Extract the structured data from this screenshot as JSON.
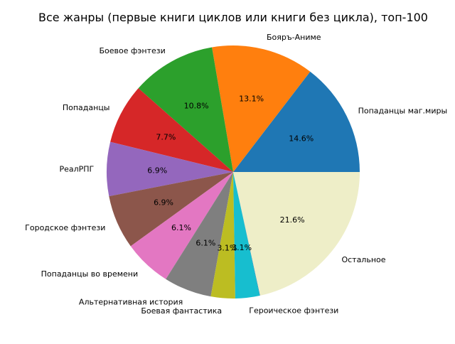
{
  "chart_data": {
    "type": "pie",
    "title": "Все жанры (первые книги циклов или книги без цикла), топ-100",
    "start_angle_deg": 0,
    "direction": "counterclockwise",
    "slices": [
      {
        "label": "Попаданцы маг.миры",
        "value": 14.6,
        "pct_label": "14.6%",
        "color": "#1f77b4"
      },
      {
        "label": "Бояръ-Аниме",
        "value": 13.1,
        "pct_label": "13.1%",
        "color": "#ff7f0e"
      },
      {
        "label": "Боевое фэнтези",
        "value": 10.8,
        "pct_label": "10.8%",
        "color": "#2ca02c"
      },
      {
        "label": "Попаданцы",
        "value": 7.7,
        "pct_label": "7.7%",
        "color": "#d62728"
      },
      {
        "label": "РеалРПГ",
        "value": 6.9,
        "pct_label": "6.9%",
        "color": "#9467bd"
      },
      {
        "label": "Городское фэнтези",
        "value": 6.9,
        "pct_label": "6.9%",
        "color": "#8c564b"
      },
      {
        "label": "Попаданцы во времени",
        "value": 6.1,
        "pct_label": "6.1%",
        "color": "#e377c2"
      },
      {
        "label": "Альтернативная история",
        "value": 6.1,
        "pct_label": "6.1%",
        "color": "#7f7f7f"
      },
      {
        "label": "Боевая фантастика",
        "value": 3.1,
        "pct_label": "3.1%",
        "color": "#bcbd22"
      },
      {
        "label": "Героическое фэнтези",
        "value": 3.1,
        "pct_label": "3.1%",
        "color": "#17becf"
      },
      {
        "label": "",
        "value": 0.05,
        "pct_label": "",
        "color": "#1f77b4"
      },
      {
        "label": "Остальное",
        "value": 21.6,
        "pct_label": "21.6%",
        "color": "#eeeec8"
      }
    ]
  }
}
